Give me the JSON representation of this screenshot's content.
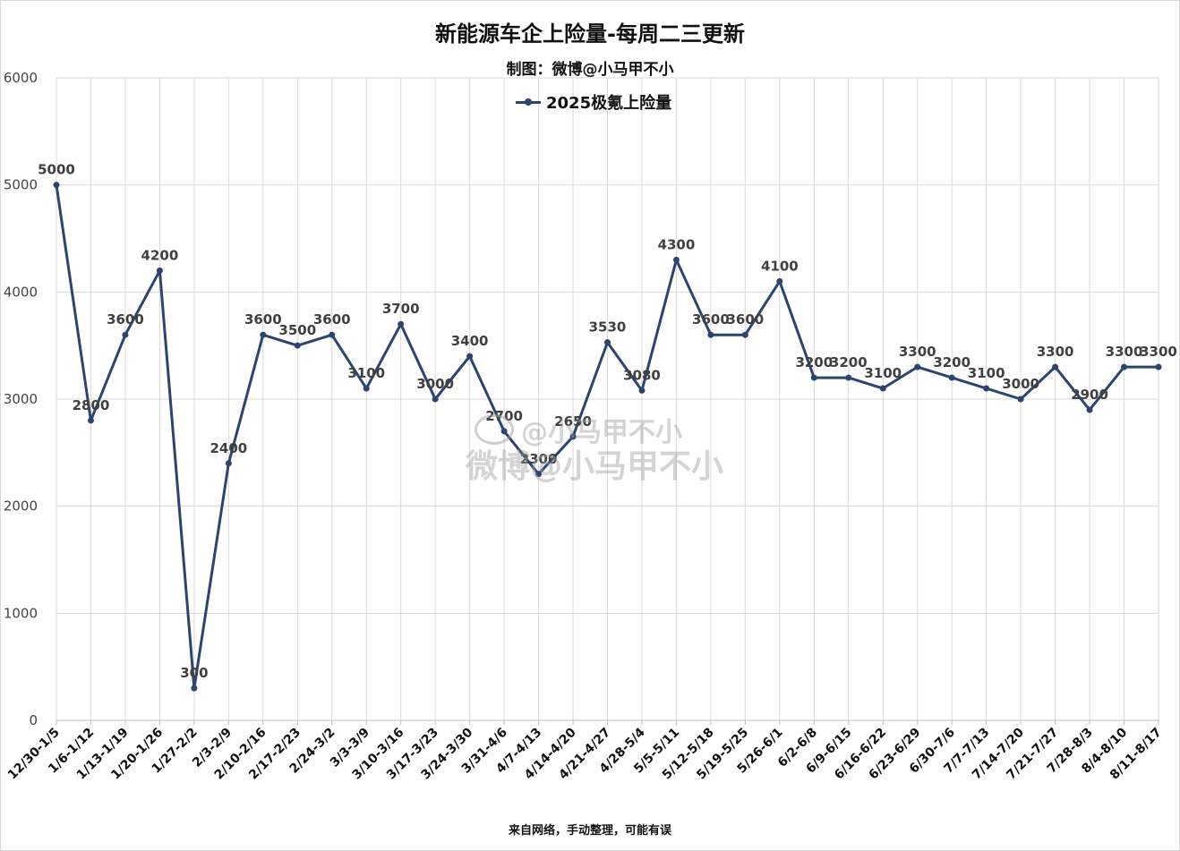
{
  "title": "新能源车企上险量-每周二三更新",
  "subtitle": "制图：微博@小马甲不小",
  "footer": "来自网络，手动整理，可能有误",
  "watermark": {
    "line1": "@小马甲不小",
    "line2": "微博@小马甲不小",
    "icon": "weibo-logo-icon"
  },
  "colors": {
    "series": "#2b4470",
    "grid": "#d9d9d9"
  },
  "chart_data": {
    "type": "line",
    "title": "新能源车企上险量-每周二三更新",
    "ylim": [
      0,
      6000
    ],
    "yticks": [
      0,
      1000,
      2000,
      3000,
      4000,
      5000,
      6000
    ],
    "grid": true,
    "legend_position": "top",
    "categories": [
      "12/30-1/5",
      "1/6-1/12",
      "1/13-1/19",
      "1/20-1/26",
      "1/27-2/2",
      "2/3-2/9",
      "2/10-2/16",
      "2/17-2/23",
      "2/24-3/2",
      "3/3-3/9",
      "3/10-3/16",
      "3/17-3/23",
      "3/24-3/30",
      "3/31-4/6",
      "4/7-4/13",
      "4/14-4/20",
      "4/21-4/27",
      "4/28-5/4",
      "5/5-5/11",
      "5/12-5/18",
      "5/19-5/25",
      "5/26-6/1",
      "6/2-6/8",
      "6/9-6/15",
      "6/16-6/22",
      "6/23-6/29",
      "6/30-7/6",
      "7/7-7/13",
      "7/14-7/20",
      "7/21-7/27",
      "7/28-8/3",
      "8/4-8/10",
      "8/11-8/17"
    ],
    "series": [
      {
        "name": "2025极氪上险量",
        "values": [
          5000,
          2800,
          3600,
          4200,
          300,
          2400,
          3600,
          3500,
          3600,
          3100,
          3700,
          3000,
          3400,
          2700,
          2300,
          2650,
          3530,
          3080,
          4300,
          3600,
          3600,
          4100,
          3200,
          3200,
          3100,
          3300,
          3200,
          3100,
          3000,
          3300,
          2900,
          3300,
          3300
        ]
      }
    ]
  }
}
